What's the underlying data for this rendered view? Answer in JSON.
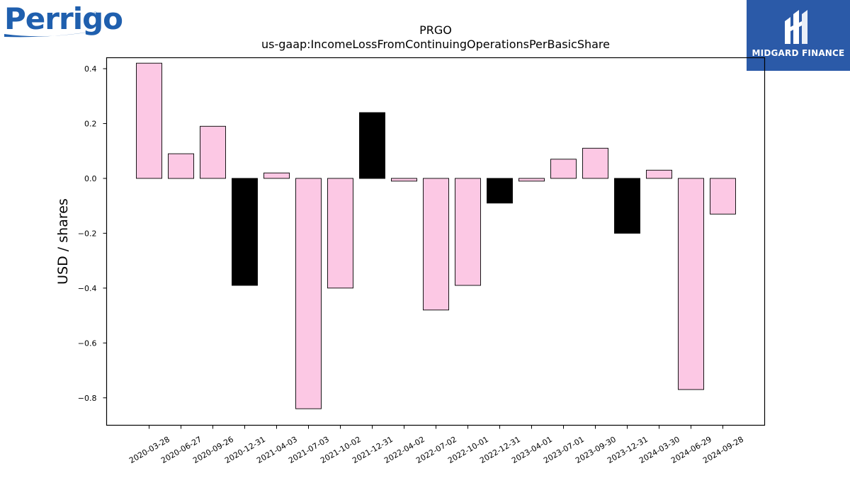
{
  "logos": {
    "company": "Perrigo",
    "company_reg": "®",
    "brand": "MIDGARD FINANCE"
  },
  "colors": {
    "positive_bar": "#fcc8e4",
    "negative_q4_bar": "#000000",
    "brand_blue": "#2b5aa8",
    "perrigo_blue": "#1f5fae"
  },
  "chart_data": {
    "type": "bar",
    "title": "PRGO",
    "subtitle": "us-gaap:IncomeLossFromContinuingOperationsPerBasicShare",
    "xlabel": "",
    "ylabel": "USD / shares",
    "ylim": [
      -0.9,
      0.44
    ],
    "yticks": [
      0.4,
      0.2,
      0.0,
      -0.2,
      -0.4,
      -0.6,
      -0.8
    ],
    "ytick_labels": [
      "0.4",
      "0.2",
      "0.0",
      "−0.2",
      "−0.4",
      "−0.6",
      "−0.8"
    ],
    "grid": false,
    "categories": [
      "2020-03-28",
      "2020-06-27",
      "2020-09-26",
      "2020-12-31",
      "2021-04-03",
      "2021-07-03",
      "2021-10-02",
      "2021-12-31",
      "2022-04-02",
      "2022-07-02",
      "2022-10-01",
      "2022-12-31",
      "2023-04-01",
      "2023-07-01",
      "2023-09-30",
      "2023-12-31",
      "2024-03-30",
      "2024-06-29",
      "2024-09-28"
    ],
    "values": [
      0.42,
      0.09,
      0.19,
      -0.39,
      0.02,
      -0.84,
      -0.4,
      0.24,
      -0.01,
      -0.48,
      -0.39,
      -0.09,
      -0.01,
      0.07,
      0.11,
      -0.2,
      0.03,
      -0.77,
      -0.13
    ],
    "bar_colors": [
      "#fcc8e4",
      "#fcc8e4",
      "#fcc8e4",
      "#000000",
      "#fcc8e4",
      "#fcc8e4",
      "#fcc8e4",
      "#000000",
      "#fcc8e4",
      "#fcc8e4",
      "#fcc8e4",
      "#000000",
      "#fcc8e4",
      "#fcc8e4",
      "#fcc8e4",
      "#000000",
      "#fcc8e4",
      "#fcc8e4",
      "#fcc8e4"
    ]
  }
}
